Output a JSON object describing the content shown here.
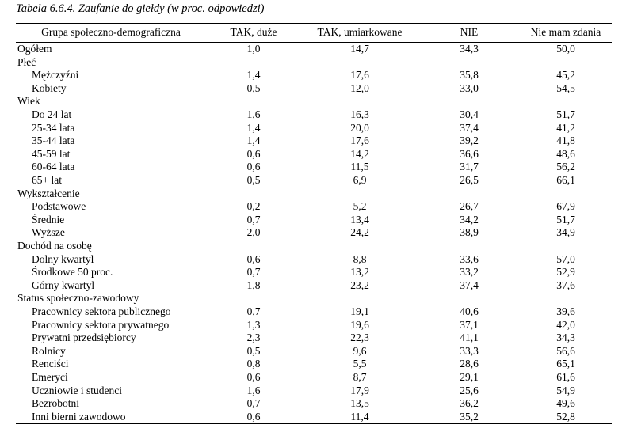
{
  "caption": "Tabela 6.6.4. Zaufanie do giełdy (w proc. odpowiedzi)",
  "headers": [
    "Grupa społeczno-demograficzna",
    "TAK, duże",
    "TAK, umiarkowane",
    "NIE",
    "Nie mam zdania"
  ],
  "rows": [
    {
      "label": "Ogółem",
      "indent": false,
      "values": [
        "1,0",
        "14,7",
        "34,3",
        "50,0"
      ]
    },
    {
      "label": "Płeć",
      "indent": false,
      "values": [
        "",
        "",
        "",
        ""
      ]
    },
    {
      "label": "Mężczyźni",
      "indent": true,
      "values": [
        "1,4",
        "17,6",
        "35,8",
        "45,2"
      ]
    },
    {
      "label": "Kobiety",
      "indent": true,
      "values": [
        "0,5",
        "12,0",
        "33,0",
        "54,5"
      ]
    },
    {
      "label": "Wiek",
      "indent": false,
      "values": [
        "",
        "",
        "",
        ""
      ]
    },
    {
      "label": "Do 24 lat",
      "indent": true,
      "values": [
        "1,6",
        "16,3",
        "30,4",
        "51,7"
      ]
    },
    {
      "label": "25-34 lata",
      "indent": true,
      "values": [
        "1,4",
        "20,0",
        "37,4",
        "41,2"
      ]
    },
    {
      "label": "35-44 lata",
      "indent": true,
      "values": [
        "1,4",
        "17,6",
        "39,2",
        "41,8"
      ]
    },
    {
      "label": "45-59 lat",
      "indent": true,
      "values": [
        "0,6",
        "14,2",
        "36,6",
        "48,6"
      ]
    },
    {
      "label": "60-64 lata",
      "indent": true,
      "values": [
        "0,6",
        "11,5",
        "31,7",
        "56,2"
      ]
    },
    {
      "label": "65+ lat",
      "indent": true,
      "values": [
        "0,5",
        "6,9",
        "26,5",
        "66,1"
      ]
    },
    {
      "label": "Wykształcenie",
      "indent": false,
      "values": [
        "",
        "",
        "",
        ""
      ]
    },
    {
      "label": "Podstawowe",
      "indent": true,
      "values": [
        "0,2",
        "5,2",
        "26,7",
        "67,9"
      ]
    },
    {
      "label": "Średnie",
      "indent": true,
      "values": [
        "0,7",
        "13,4",
        "34,2",
        "51,7"
      ]
    },
    {
      "label": "Wyższe",
      "indent": true,
      "values": [
        "2,0",
        "24,2",
        "38,9",
        "34,9"
      ]
    },
    {
      "label": "Dochód na osobę",
      "indent": false,
      "values": [
        "",
        "",
        "",
        ""
      ]
    },
    {
      "label": "Dolny kwartyl",
      "indent": true,
      "values": [
        "0,6",
        "8,8",
        "33,6",
        "57,0"
      ]
    },
    {
      "label": "Środkowe 50 proc.",
      "indent": true,
      "values": [
        "0,7",
        "13,2",
        "33,2",
        "52,9"
      ]
    },
    {
      "label": "Górny kwartyl",
      "indent": true,
      "values": [
        "1,8",
        "23,2",
        "37,4",
        "37,6"
      ]
    },
    {
      "label": "Status społeczno-zawodowy",
      "indent": false,
      "values": [
        "",
        "",
        "",
        ""
      ]
    },
    {
      "label": "Pracownicy sektora publicznego",
      "indent": true,
      "values": [
        "0,7",
        "19,1",
        "40,6",
        "39,6"
      ]
    },
    {
      "label": "Pracownicy sektora prywatnego",
      "indent": true,
      "values": [
        "1,3",
        "19,6",
        "37,1",
        "42,0"
      ]
    },
    {
      "label": "Prywatni przedsiębiorcy",
      "indent": true,
      "values": [
        "2,3",
        "22,3",
        "41,1",
        "34,3"
      ]
    },
    {
      "label": "Rolnicy",
      "indent": true,
      "values": [
        "0,5",
        "9,6",
        "33,3",
        "56,6"
      ]
    },
    {
      "label": "Renciści",
      "indent": true,
      "values": [
        "0,8",
        "5,5",
        "28,6",
        "65,1"
      ]
    },
    {
      "label": "Emeryci",
      "indent": true,
      "values": [
        "0,6",
        "8,7",
        "29,1",
        "61,6"
      ]
    },
    {
      "label": "Uczniowie i studenci",
      "indent": true,
      "values": [
        "1,6",
        "17,9",
        "25,6",
        "54,9"
      ]
    },
    {
      "label": "Bezrobotni",
      "indent": true,
      "values": [
        "0,7",
        "13,5",
        "36,2",
        "49,6"
      ]
    },
    {
      "label": "Inni bierni zawodowo",
      "indent": true,
      "values": [
        "0,6",
        "11,4",
        "35,2",
        "52,8"
      ]
    }
  ]
}
